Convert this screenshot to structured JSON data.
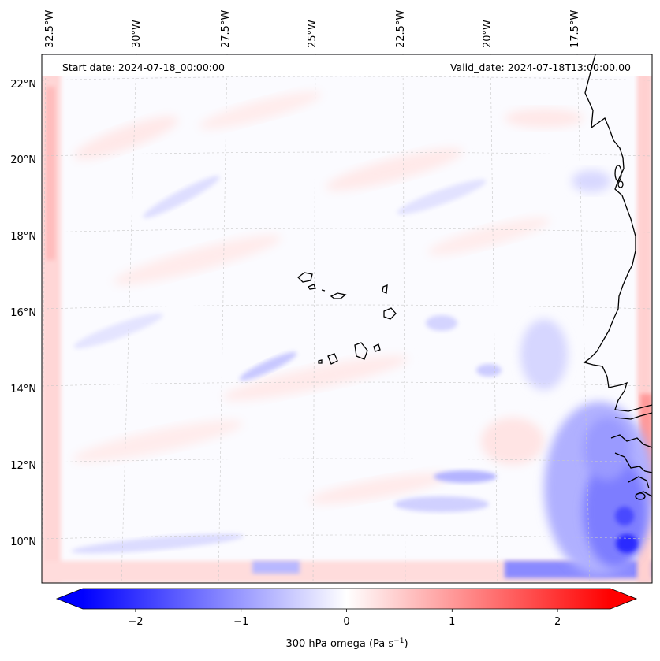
{
  "map": {
    "start_date": "Start date: 2024-07-18_00:00:00",
    "valid_date": "Valid_date: 2024-07-18T13:00:00.00",
    "lon_labels": [
      "32.5°W",
      "30°W",
      "27.5°W",
      "25°W",
      "22.5°W",
      "20°W",
      "17.5°W"
    ],
    "lat_labels": [
      "22°N",
      "20°N",
      "18°N",
      "16°N",
      "14°N",
      "12°N",
      "10°N"
    ],
    "variable": "300 hPa omega",
    "colormap": "bwr",
    "coastline_color": "#000000",
    "gridlines": true
  },
  "colorbar": {
    "label_main": "300 hPa omega (Pa s",
    "label_sup": "−1",
    "label_end": ")",
    "ticks": [
      "−2",
      "−1",
      "0",
      "1",
      "2"
    ],
    "tick_values": [
      -2,
      -1,
      0,
      1,
      2
    ],
    "range": [
      -2.5,
      2.5
    ],
    "extend": "both",
    "colors": {
      "min": "#0000ff",
      "mid": "#ffffff",
      "max": "#ff0000"
    }
  }
}
